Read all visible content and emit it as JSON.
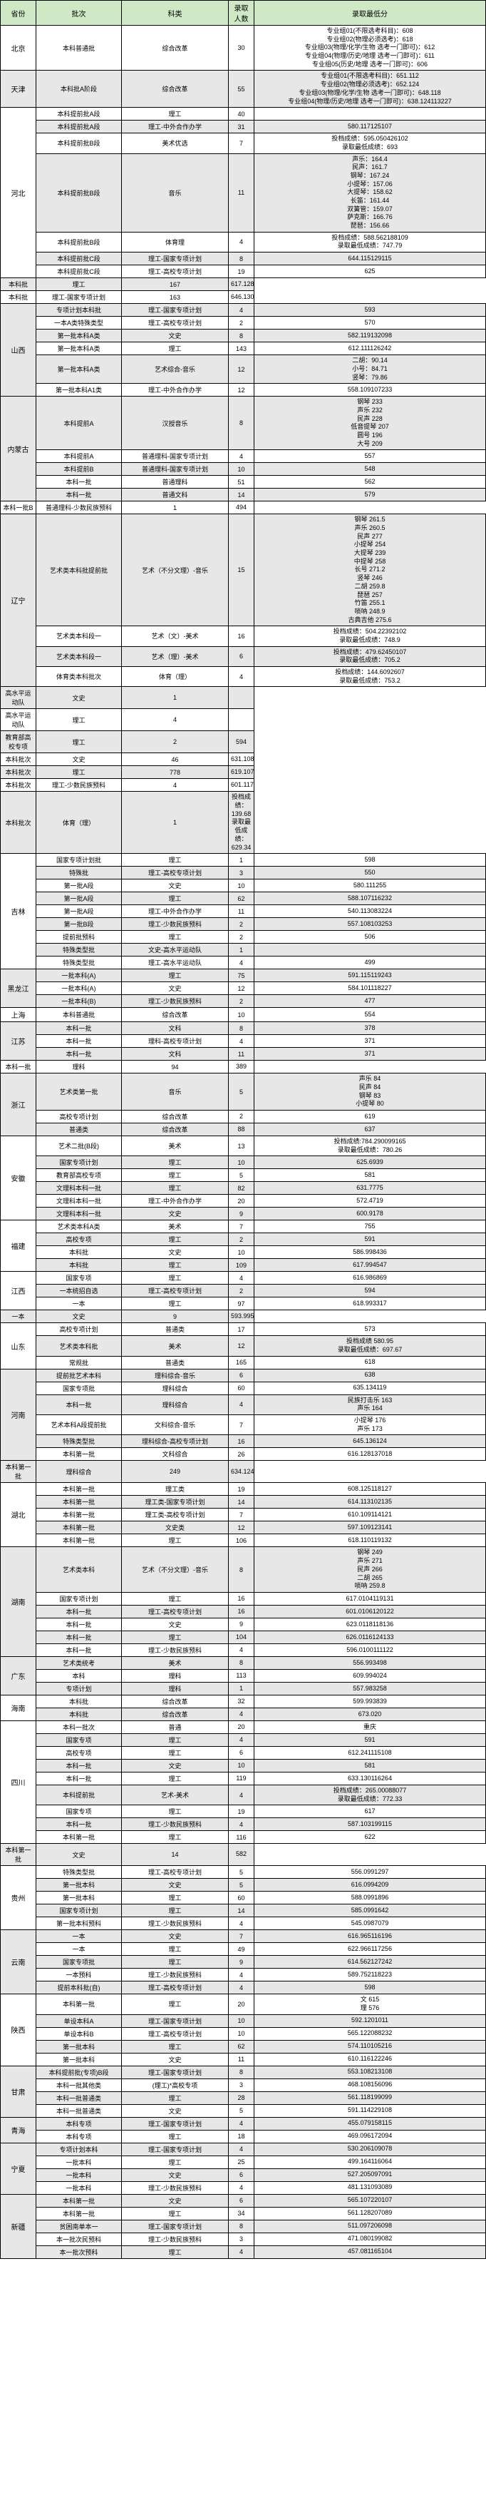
{
  "headers": [
    "省份",
    "批次",
    "科类",
    "录取人数",
    "录取最低分"
  ],
  "colors": {
    "header_bg": "#cfe8c5",
    "alt_bg": "#e7e7e7",
    "border": "#000000"
  },
  "rows": [
    {
      "alt": 0,
      "prov": "北京",
      "provSpan": 1,
      "batch": "本科普通批",
      "subj": "综合改革",
      "num": "30",
      "score": "专业组01(不限选考科目)：608\n专业组02(物理必须选考)：618\n专业组03(物理/化学/生物 选考一门即可)：612\n专业组04(物理/历史/地理 选考一门即可)：611\n专业组05(历史/地理 选考一门即可)：606"
    },
    {
      "alt": 1,
      "prov": "天津",
      "provSpan": 1,
      "batch": "本科批A阶段",
      "subj": "综合改革",
      "num": "55",
      "score": "专业组01(不限选考科目)：651.112\n专业组02(物理必须选考)：652.124\n专业组03(物理/化学/生物 选考一门即可)：648.118\n专业组04(物理/历史/地理 选考一门即可)：638.124113227"
    },
    {
      "alt": 0,
      "prov": "河北",
      "provSpan": 7,
      "batch": "本科提前批A段",
      "subj": "理工",
      "num": "40",
      "score": ""
    },
    {
      "alt": 1,
      "batch": "本科提前批A段",
      "subj": "理工-中外合作办学",
      "num": "31",
      "score": "580.117125107"
    },
    {
      "alt": 0,
      "batch": "本科提前批B段",
      "subj": "美术优选",
      "num": "7",
      "score": "投档成绩：595.050426102\n录取最低成绩：693"
    },
    {
      "alt": 1,
      "batch": "本科提前批B段",
      "subj": "音乐",
      "num": "11",
      "score": "声乐：164.4\n民声：161.7\n钢琴：167.24\n小提琴：157.06\n大提琴：158.62\n长笛：161.44\n双簧管：159.07\n萨克斯：166.76\n琵琶：156.66"
    },
    {
      "alt": 0,
      "batch": "本科提前批B段",
      "subj": "体育理",
      "num": "4",
      "score": "投档成绩：588.562188109\n录取最低成绩：747.79"
    },
    {
      "alt": 1,
      "batch": "本科提前批C段",
      "subj": "理工-国家专项计划",
      "num": "8",
      "score": "644.115129115"
    },
    {
      "alt": 0,
      "batch": "本科提前批C段",
      "subj": "理工-高校专项计划",
      "num": "19",
      "score": "625"
    },
    {
      "alt": 1,
      "batch": "本科批",
      "subj": "理工",
      "num": "167",
      "score": "617.128134135"
    },
    {
      "alt": 0,
      "batch": "本科批",
      "subj": "理工-国家专项计划",
      "num": "163",
      "score": "646.130134128"
    },
    {
      "alt": 1,
      "prov": "山西",
      "provSpan": 6,
      "batch": "专项计划本科批",
      "subj": "理工-国家专项计划",
      "num": "4",
      "score": "593"
    },
    {
      "alt": 0,
      "batch": "一本A类特殊类型",
      "subj": "理工-高校专项计划",
      "num": "2",
      "score": "570"
    },
    {
      "alt": 1,
      "batch": "第一批本科A类",
      "subj": "文史",
      "num": "8",
      "score": "582.119132098"
    },
    {
      "alt": 0,
      "batch": "第一批本科A类",
      "subj": "理工",
      "num": "143",
      "score": "612.111126242"
    },
    {
      "alt": 1,
      "batch": "第一批本科A类",
      "subj": "艺术综合-音乐",
      "num": "12",
      "score": "二胡：90.14\n小号：84.71\n竖琴：79.86"
    },
    {
      "alt": 0,
      "batch": "第一批本科A1类",
      "subj": "理工-中外合作办学",
      "num": "12",
      "score": "558.109107233"
    },
    {
      "alt": 1,
      "prov": "内蒙古",
      "provSpan": 5,
      "batch": "本科提前A",
      "subj": "汉授音乐",
      "num": "8",
      "score": "钢琴 233\n声乐 232\n民声 228\n低音提琴 207\n圆号 196\n大号 209"
    },
    {
      "alt": 0,
      "batch": "本科提前A",
      "subj": "普通理科-国家专项计划",
      "num": "4",
      "score": "557"
    },
    {
      "alt": 1,
      "batch": "本科提前B",
      "subj": "普通理科-国家专项计划",
      "num": "10",
      "score": "548"
    },
    {
      "alt": 0,
      "batch": "本科一批",
      "subj": "普通理科",
      "num": "51",
      "score": "562"
    },
    {
      "alt": 1,
      "batch": "本科一批",
      "subj": "普通文科",
      "num": "14",
      "score": "579"
    },
    {
      "alt": 0,
      "batch": "本科一批B",
      "subj": "普通理科-少数民族预科",
      "num": "1",
      "score": "494"
    },
    {
      "alt": 1,
      "prov": "辽宁",
      "provSpan": 4,
      "batch": "艺术类本科批提前批",
      "subj": "艺术（不分文理）-音乐",
      "num": "15",
      "score": "钢琴 261.5\n声乐 260.5\n民声 277\n小提琴 254\n大提琴 239\n中提琴 258\n长号 271.2\n竖琴 246\n二胡 259.8\n琵琶 257\n竹笛 255.1\n唢呐 248.9\n古典吉他 275.6"
    },
    {
      "alt": 0,
      "batch": "艺术类本科段一",
      "subj": "艺术（文）-美术",
      "num": "16",
      "score": "投档成绩：504.22392102\n录取最低成绩：748.9"
    },
    {
      "alt": 1,
      "batch": "艺术类本科段一",
      "subj": "艺术（理）-美术",
      "num": "6",
      "score": "投档成绩：479.62450107\n录取最低成绩：705.2"
    },
    {
      "alt": 0,
      "batch": "体育类本科批次",
      "subj": "体育（理）",
      "num": "4",
      "score": "投档成绩：144.6092607\n录取最低成绩：753.2"
    },
    {
      "alt": 1,
      "batch": "高水平运动队",
      "subj": "文史",
      "num": "1",
      "score": ""
    },
    {
      "alt": 0,
      "batch": "高水平运动队",
      "subj": "理工",
      "num": "4",
      "score": ""
    },
    {
      "alt": 1,
      "batch": "教育部高校专项",
      "subj": "理工",
      "num": "2",
      "score": "594"
    },
    {
      "alt": 0,
      "batch": "本科批次",
      "subj": "文史",
      "num": "46",
      "score": "631.108137131"
    },
    {
      "alt": 1,
      "batch": "本科批次",
      "subj": "理工",
      "num": "778",
      "score": "619.107120138"
    },
    {
      "alt": 0,
      "batch": "本科批次",
      "subj": "理工-少数民族预科",
      "num": "4",
      "score": "601.117131139"
    },
    {
      "alt": 1,
      "batch": "本科批次",
      "subj": "体育（理）",
      "num": "1",
      "score": "投档成绩：139.68\n录取最低成绩：629.34"
    },
    {
      "alt": 0,
      "prov": "吉林",
      "provSpan": 9,
      "batch": "国家专项计划批",
      "subj": "理工",
      "num": "1",
      "score": "598"
    },
    {
      "alt": 1,
      "batch": "特殊批",
      "subj": "理工-高校专项计划",
      "num": "3",
      "score": "550"
    },
    {
      "alt": 0,
      "batch": "第一批A段",
      "subj": "文史",
      "num": "10",
      "score": "580.111255"
    },
    {
      "alt": 1,
      "batch": "第一批A段",
      "subj": "理工",
      "num": "62",
      "score": "588.107116232"
    },
    {
      "alt": 0,
      "batch": "第一批A段",
      "subj": "理工-中外合作办学",
      "num": "11",
      "score": "540.113083224"
    },
    {
      "alt": 1,
      "batch": "第一批B段",
      "subj": "理工-少数民族预科",
      "num": "2",
      "score": "557.108103253"
    },
    {
      "alt": 0,
      "batch": "提前批预科",
      "subj": "理工",
      "num": "2",
      "score": "506"
    },
    {
      "alt": 1,
      "batch": "特殊类型批",
      "subj": "文史-高水平运动队",
      "num": "1",
      "score": ""
    },
    {
      "alt": 0,
      "batch": "特殊类型批",
      "subj": "理工-高水平运动队",
      "num": "4",
      "score": "499"
    },
    {
      "alt": 1,
      "prov": "黑龙江",
      "provSpan": 3,
      "batch": "一批本科(A)",
      "subj": "理工",
      "num": "75",
      "score": "591.115119243"
    },
    {
      "alt": 0,
      "batch": "一批本科(A)",
      "subj": "文史",
      "num": "12",
      "score": "584.101118227"
    },
    {
      "alt": 1,
      "batch": "一批本科(B)",
      "subj": "理工-少数民族预科",
      "num": "2",
      "score": "477"
    },
    {
      "alt": 0,
      "prov": "上海",
      "provSpan": 1,
      "batch": "本科普通批",
      "subj": "综合改革",
      "num": "10",
      "score": "554"
    },
    {
      "alt": 1,
      "prov": "江苏",
      "provSpan": 3,
      "batch": "本科一批",
      "subj": "文科",
      "num": "8",
      "score": "378"
    },
    {
      "alt": 0,
      "batch": "本科一批",
      "subj": "理科-高校专项计划",
      "num": "4",
      "score": "371"
    },
    {
      "alt": 1,
      "batch": "本科一批",
      "subj": "文科",
      "num": "11",
      "score": "371"
    },
    {
      "alt": 0,
      "batch": "本科一批",
      "subj": "理科",
      "num": "94",
      "score": "389"
    },
    {
      "alt": 1,
      "prov": "浙江",
      "provSpan": 3,
      "batch": "艺术类第一批",
      "subj": "音乐",
      "num": "5",
      "score": "声乐 84\n民声 84\n钢琴 83\n小提琴 80"
    },
    {
      "alt": 0,
      "batch": "高校专项计划",
      "subj": "综合改革",
      "num": "2",
      "score": "619"
    },
    {
      "alt": 1,
      "batch": "普通类",
      "subj": "综合改革",
      "num": "88",
      "score": "637"
    },
    {
      "alt": 0,
      "prov": "安徽",
      "provSpan": 6,
      "batch": "艺术二批(B段)",
      "subj": "美术",
      "num": "13",
      "score": "投档成绩:784.290099165\n录取最低成绩：780.26"
    },
    {
      "alt": 1,
      "batch": "国家专项计划",
      "subj": "理工",
      "num": "10",
      "score": "625.6939"
    },
    {
      "alt": 0,
      "batch": "教育部高校专项",
      "subj": "理工",
      "num": "5",
      "score": "581"
    },
    {
      "alt": 1,
      "batch": "文理科本科一批",
      "subj": "理工",
      "num": "82",
      "score": "631.7775"
    },
    {
      "alt": 0,
      "batch": "文理科本科一批",
      "subj": "理工-中外合作办学",
      "num": "20",
      "score": "572.4719"
    },
    {
      "alt": 1,
      "batch": "文理科本科一批",
      "subj": "文史",
      "num": "9",
      "score": "600.9178"
    },
    {
      "alt": 0,
      "prov": "福建",
      "provSpan": 4,
      "batch": "艺术类本科A类",
      "subj": "美术",
      "num": "7",
      "score": "755"
    },
    {
      "alt": 1,
      "batch": "高校专项",
      "subj": "理工",
      "num": "2",
      "score": "591"
    },
    {
      "alt": 0,
      "batch": "本科批",
      "subj": "文史",
      "num": "10",
      "score": "586.998436"
    },
    {
      "alt": 1,
      "batch": "本科批",
      "subj": "理工",
      "num": "109",
      "score": "617.994547"
    },
    {
      "alt": 0,
      "prov": "江西",
      "provSpan": 3,
      "batch": "国家专项",
      "subj": "理工",
      "num": "4",
      "score": "616.986869"
    },
    {
      "alt": 1,
      "batch": "一本统招自选",
      "subj": "理工-高校专项计划",
      "num": "2",
      "score": "594"
    },
    {
      "alt": 0,
      "batch": "一本",
      "subj": "理工",
      "num": "97",
      "score": "618.993317"
    },
    {
      "alt": 1,
      "batch": "一本",
      "subj": "文史",
      "num": "9",
      "score": "593.995237"
    },
    {
      "alt": 0,
      "prov": "山东",
      "provSpan": 3,
      "batch": "高校专项计划",
      "subj": "普通类",
      "num": "17",
      "score": "573"
    },
    {
      "alt": 1,
      "batch": "艺术类本科批",
      "subj": "美术",
      "num": "12",
      "score": "投档成绩 580.95\n录取最低成绩：697.67"
    },
    {
      "alt": 0,
      "batch": "常规批",
      "subj": "普通类",
      "num": "165",
      "score": "618"
    },
    {
      "alt": 1,
      "prov": "河南",
      "provSpan": 6,
      "batch": "提前批艺术本科",
      "subj": "理科综合-音乐",
      "num": "6",
      "score": "638"
    },
    {
      "alt": 0,
      "batch": "国家专项批",
      "subj": "理科综合",
      "num": "60",
      "score": "635.134119"
    },
    {
      "alt": 1,
      "batch": "本科一批",
      "subj": "理科综合",
      "num": "4",
      "score": "民族打击乐 163\n声乐 164"
    },
    {
      "alt": 0,
      "batch": "艺术本科A段提前批",
      "subj": "文科综合-音乐",
      "num": "7",
      "score": "小提琴 176\n声乐 173"
    },
    {
      "alt": 1,
      "batch": "特殊类型批",
      "subj": "理科综合-高校专项计划",
      "num": "16",
      "score": "645.136124"
    },
    {
      "alt": 0,
      "batch": "本科第一批",
      "subj": "文科综合",
      "num": "26",
      "score": "616.128137018"
    },
    {
      "alt": 1,
      "batch": "本科第一批",
      "subj": "理科综合",
      "num": "249",
      "score": "634.124137016"
    },
    {
      "alt": 0,
      "prov": "湖北",
      "provSpan": 5,
      "batch": "本科第一批",
      "subj": "理工类",
      "num": "19",
      "score": "608.125118127"
    },
    {
      "alt": 1,
      "batch": "本科第一批",
      "subj": "理工类-国家专项计划",
      "num": "14",
      "score": "614.113102135"
    },
    {
      "alt": 0,
      "batch": "本科第一批",
      "subj": "理工类-高校专项计划",
      "num": "7",
      "score": "610.109114121"
    },
    {
      "alt": 1,
      "batch": "本科第一批",
      "subj": "文史类",
      "num": "12",
      "score": "597.109123141"
    },
    {
      "alt": 0,
      "batch": "本科第一批",
      "subj": "理工",
      "num": "106",
      "score": "618.110119132"
    },
    {
      "alt": 1,
      "prov": "湖南",
      "provSpan": 6,
      "batch": "艺术类本科",
      "subj": "艺术（不分文理）-音乐",
      "num": "8",
      "score": "钢琴 249\n声乐 271\n民声 266\n二胡 265\n唢呐 259.8"
    },
    {
      "alt": 0,
      "batch": "国家专项计划",
      "subj": "理工",
      "num": "16",
      "score": "617.0104119131"
    },
    {
      "alt": 1,
      "batch": "本科一批",
      "subj": "理工-高校专项计划",
      "num": "16",
      "score": "601.0106120122"
    },
    {
      "alt": 0,
      "batch": "本科一批",
      "subj": "文史",
      "num": "9",
      "score": "623.0118118136"
    },
    {
      "alt": 1,
      "batch": "本科一批",
      "subj": "理工",
      "num": "104",
      "score": "626.0116124133"
    },
    {
      "alt": 0,
      "batch": "本科一批",
      "subj": "理工-少数民族预科",
      "num": "4",
      "score": "596.0100111122"
    },
    {
      "alt": 1,
      "prov": "广东",
      "provSpan": 3,
      "batch": "艺术类统考",
      "subj": "美术",
      "num": "8",
      "score": "556.993498"
    },
    {
      "alt": 0,
      "batch": "本科",
      "subj": "理科",
      "num": "113",
      "score": "609.994024"
    },
    {
      "alt": 1,
      "batch": "专项计划",
      "subj": "理科",
      "num": "1",
      "score": "557.983258"
    },
    {
      "alt": 0,
      "prov": "海南",
      "provSpan": 2,
      "batch": "本科批",
      "subj": "综合改革",
      "num": "32",
      "score": "599.993839"
    },
    {
      "alt": 1,
      "batch": "本科批",
      "subj": "综合改革",
      "num": "4",
      "score": "673.020"
    },
    {
      "alt": 0,
      "prov": "四川",
      "provSpan": 9,
      "batch": "本科一批次",
      "subj": "普通",
      "num": "20",
      "score": "重庆"
    },
    {
      "alt": 1,
      "batch": "国家专项",
      "subj": "理工",
      "num": "4",
      "score": "591"
    },
    {
      "alt": 0,
      "batch": "高校专项",
      "subj": "理工",
      "num": "6",
      "score": "612.241115108"
    },
    {
      "alt": 1,
      "batch": "本科一批",
      "subj": "文史",
      "num": "10",
      "score": "581"
    },
    {
      "alt": 0,
      "batch": "本科一批",
      "subj": "理工",
      "num": "119",
      "score": "633.130116264"
    },
    {
      "alt": 1,
      "batch": "本科提前批",
      "subj": "艺术-美术",
      "num": "4",
      "score": "投档成绩：265.00088077\n录取最低成绩：772.33"
    },
    {
      "alt": 0,
      "batch": "国家专项",
      "subj": "理工",
      "num": "19",
      "score": "617"
    },
    {
      "alt": 1,
      "batch": "本科一批",
      "subj": "理工-少数民族预科",
      "num": "4",
      "score": "587.103199115"
    },
    {
      "alt": 0,
      "batch": "本科第一批",
      "subj": "理工",
      "num": "116",
      "score": "622"
    },
    {
      "alt": 1,
      "batch": "本科第一批",
      "subj": "文史",
      "num": "14",
      "score": "582"
    },
    {
      "alt": 0,
      "prov": "贵州",
      "provSpan": 5,
      "batch": "特殊类型批",
      "subj": "理工-高校专项计划",
      "num": "5",
      "score": "556.0991297"
    },
    {
      "alt": 1,
      "batch": "第一批本科",
      "subj": "文史",
      "num": "5",
      "score": "616.0994209"
    },
    {
      "alt": 0,
      "batch": "第一批本科",
      "subj": "理工",
      "num": "60",
      "score": "588.0991896"
    },
    {
      "alt": 1,
      "batch": "国家专项计划",
      "subj": "理工",
      "num": "14",
      "score": "585.0991642"
    },
    {
      "alt": 0,
      "batch": "第一批本科预科",
      "subj": "理工-少数民族预科",
      "num": "4",
      "score": "545.0987079"
    },
    {
      "alt": 1,
      "prov": "云南",
      "provSpan": 5,
      "batch": "一本",
      "subj": "文史",
      "num": "7",
      "score": "616.965116196"
    },
    {
      "alt": 0,
      "batch": "一本",
      "subj": "理工",
      "num": "49",
      "score": "622.966117256"
    },
    {
      "alt": 1,
      "batch": "国家专项批",
      "subj": "理工",
      "num": "9",
      "score": "614.562127242"
    },
    {
      "alt": 0,
      "batch": "一本预科",
      "subj": "理工-少数民族预科",
      "num": "4",
      "score": "589.752118223"
    },
    {
      "alt": 1,
      "batch": "提前本科批(自)",
      "subj": "理工-高校专项计划",
      "num": "4",
      "score": "598"
    },
    {
      "alt": 0,
      "prov": "陕西",
      "provSpan": 5,
      "batch": "本科第一批",
      "subj": "理工",
      "num": "20",
      "score": "文 615\n理 576"
    },
    {
      "alt": 1,
      "batch": "单设本科A",
      "subj": "理工-国家专项计划",
      "num": "10",
      "score": "592.1201011"
    },
    {
      "alt": 0,
      "batch": "单设本科B",
      "subj": "理工-高校专项计划",
      "num": "10",
      "score": "565.122088232"
    },
    {
      "alt": 1,
      "batch": "第一批本科",
      "subj": "理工",
      "num": "62",
      "score": "574.110105216"
    },
    {
      "alt": 0,
      "batch": "第一批本科",
      "subj": "文史",
      "num": "11",
      "score": "610.116122246"
    },
    {
      "alt": 1,
      "prov": "甘肃",
      "provSpan": 4,
      "batch": "本科提前批(专项)B段",
      "subj": "理工-国家专项计划",
      "num": "8",
      "score": "553.108213108"
    },
    {
      "alt": 0,
      "batch": "本科一批其他类",
      "subj": "(理工)*高校专项",
      "num": "3",
      "score": "468.108156096"
    },
    {
      "alt": 1,
      "batch": "本科一批普通类",
      "subj": "理工",
      "num": "28",
      "score": "561.118199099"
    },
    {
      "alt": 0,
      "batch": "本科一批普通类",
      "subj": "文史",
      "num": "5",
      "score": "591.114229108"
    },
    {
      "alt": 1,
      "prov": "青海",
      "provSpan": 2,
      "batch": "本科专项",
      "subj": "理工-国家专项计划",
      "num": "4",
      "score": "455.079158115"
    },
    {
      "alt": 0,
      "batch": "本科专项",
      "subj": "理工",
      "num": "18",
      "score": "469.096172094"
    },
    {
      "alt": 1,
      "prov": "宁夏",
      "provSpan": 4,
      "batch": "专项计划本科",
      "subj": "理工-国家专项计划",
      "num": "4",
      "score": "530.206109078"
    },
    {
      "alt": 0,
      "batch": "一批本科",
      "subj": "理工",
      "num": "25",
      "score": "499.164116064"
    },
    {
      "alt": 1,
      "batch": "一批本科",
      "subj": "文史",
      "num": "6",
      "score": "527.205097091"
    },
    {
      "alt": 0,
      "batch": "一批本科",
      "subj": "理工-少数民族预科",
      "num": "4",
      "score": "481.131093089"
    },
    {
      "alt": 1,
      "prov": "新疆",
      "provSpan": 5,
      "batch": "本科第一批",
      "subj": "文史",
      "num": "6",
      "score": "565.107220107"
    },
    {
      "alt": 0,
      "batch": "本科第一批",
      "subj": "理工",
      "num": "34",
      "score": "561.128207089"
    },
    {
      "alt": 1,
      "batch": "贫困南单本一",
      "subj": "理工-国家专项计划",
      "num": "8",
      "score": "511.097206098"
    },
    {
      "alt": 0,
      "batch": "本一批次民预科",
      "subj": "理工-少数民族预科",
      "num": "3",
      "score": "471.080199082"
    },
    {
      "alt": 1,
      "batch": "本一批次预科",
      "subj": "理工",
      "num": "4",
      "score": "457.081165104"
    }
  ]
}
